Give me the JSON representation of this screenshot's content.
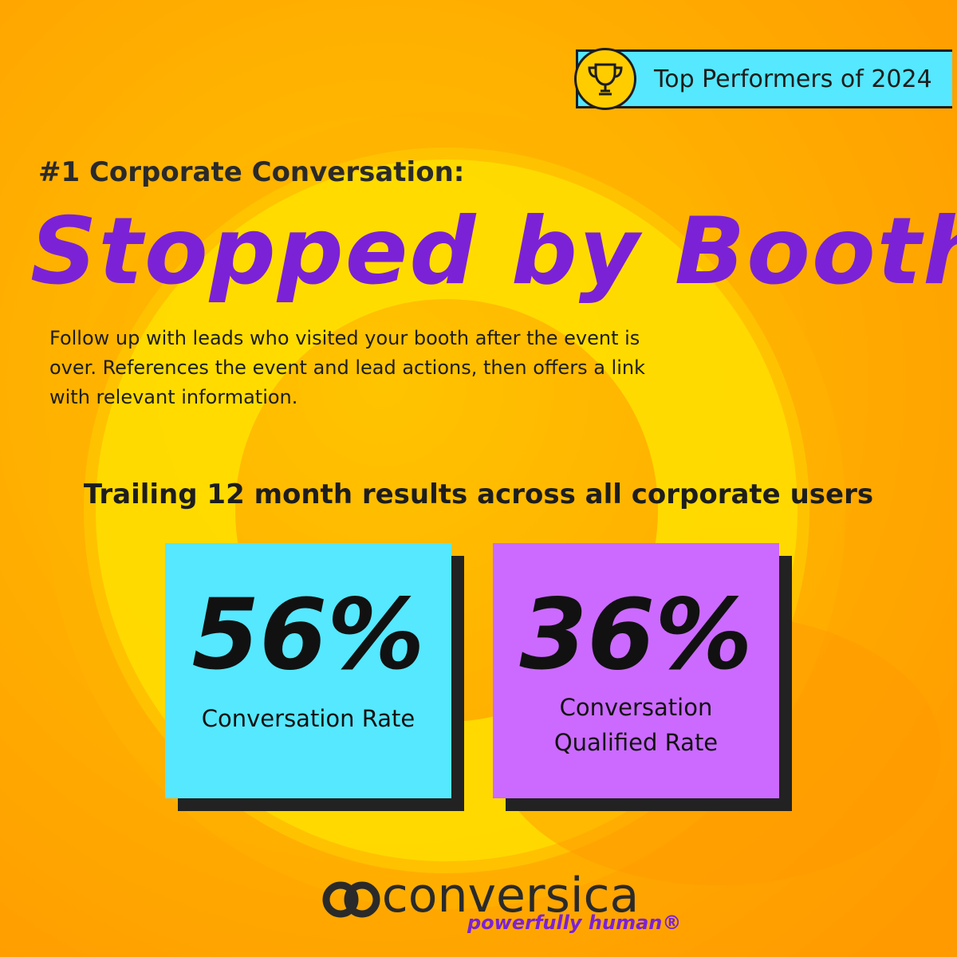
{
  "badge": {
    "text": "Top Performers of 2024"
  },
  "header": {
    "eyebrow": "#1 Corporate Conversation:",
    "headline": "Stopped by Booth",
    "description": "Follow up with leads who visited your booth after the event is over. References the event and lead actions, then offers a link with relevant information."
  },
  "results": {
    "title": "Trailing 12 month results across all corporate users",
    "stats": [
      {
        "value": "56%",
        "label": "Conversation Rate"
      },
      {
        "value": "36%",
        "label": "Conversation Qualified Rate"
      }
    ]
  },
  "logo": {
    "name": "conversica",
    "tagline": "powerfully human®"
  }
}
